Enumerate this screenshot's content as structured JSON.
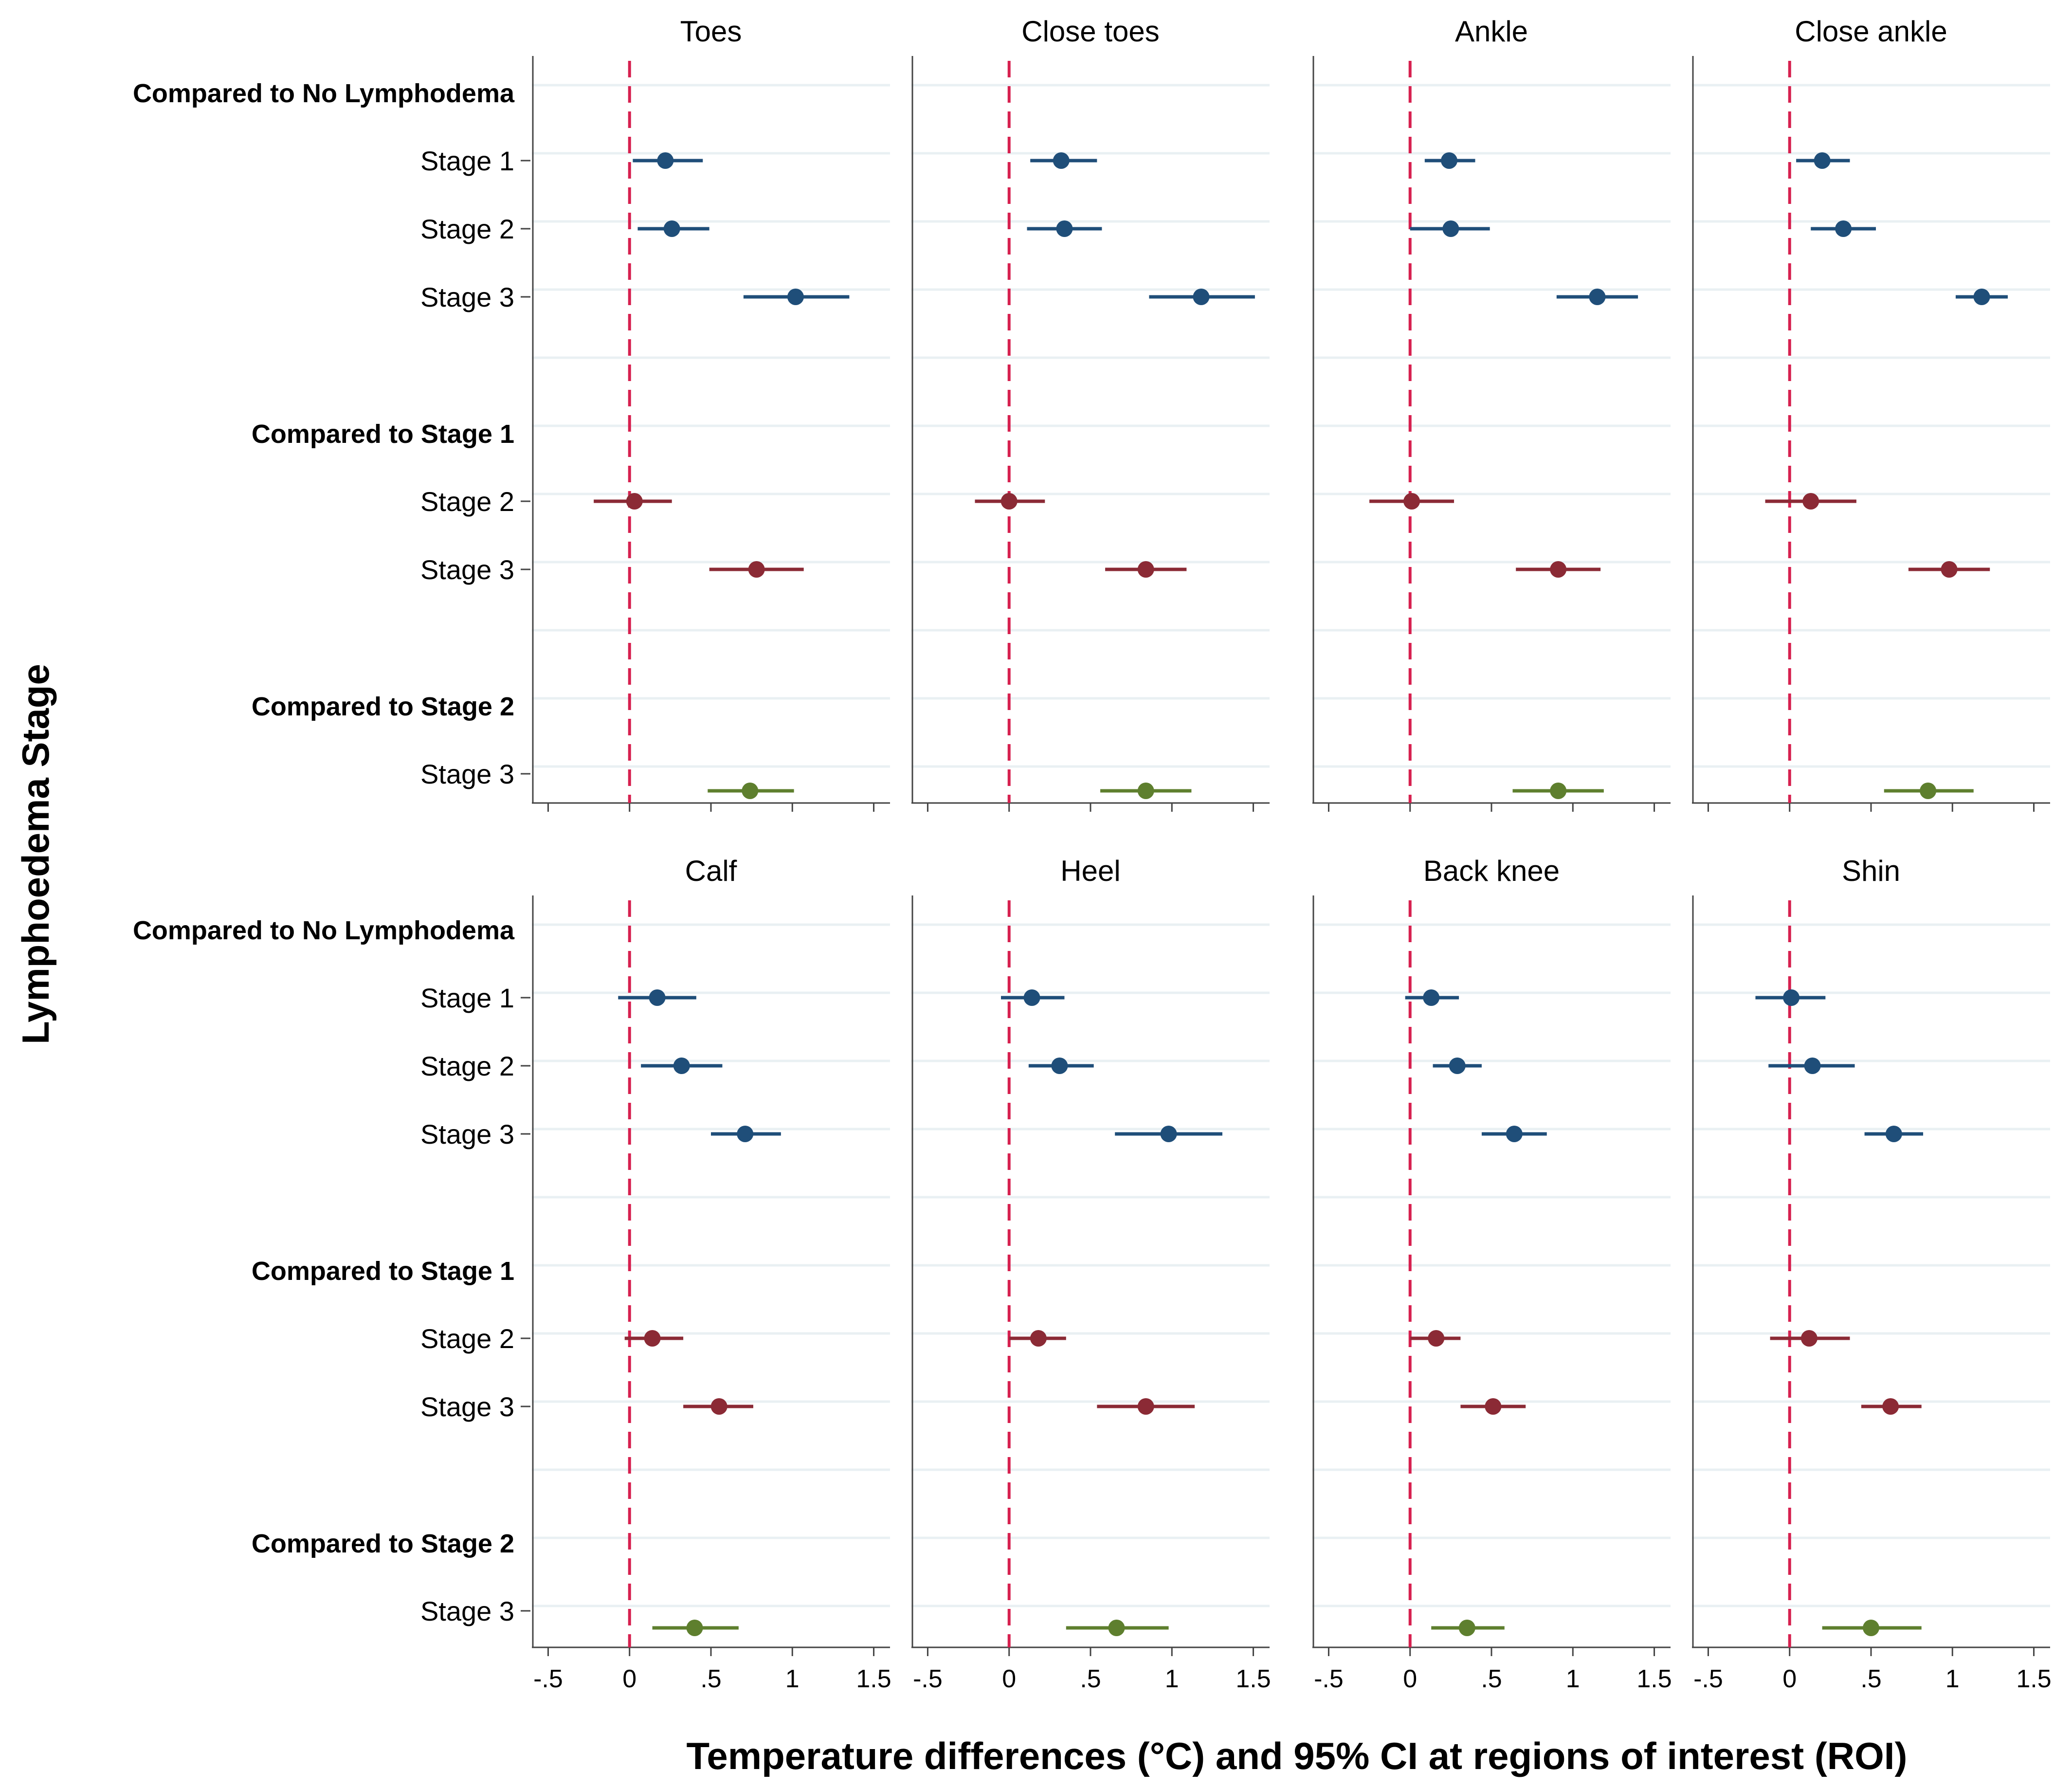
{
  "chart_data": {
    "type": "forest",
    "ylabel": "Lymphoedema Stage",
    "xlabel": "Temperature differences (°C) and 95% CI at regions of interest (ROI)",
    "xlim": [
      -0.6,
      1.6
    ],
    "x_ticks": [
      -0.5,
      0,
      0.5,
      1,
      1.5
    ],
    "x_tick_labels": [
      "-.5",
      "0",
      ".5",
      "1",
      "1.5"
    ],
    "reference_line": 0,
    "colors": {
      "vs_no_lymphodema": "#1f4e79",
      "vs_stage1": "#8b2a35",
      "vs_stage2": "#5e7f2e",
      "reference": "#d6204f",
      "gridline": "#e9f0f3",
      "axis": "#444444"
    },
    "row_labels": [
      {
        "label": "Compared to No Lymphodema",
        "kind": "header"
      },
      {
        "label": "Stage 1",
        "kind": "row"
      },
      {
        "label": "Stage 2",
        "kind": "row"
      },
      {
        "label": "Stage 3",
        "kind": "row"
      },
      {
        "label": "Compared to Stage 1",
        "kind": "header"
      },
      {
        "label": "Stage 2",
        "kind": "row"
      },
      {
        "label": "Stage 3",
        "kind": "row"
      },
      {
        "label": "Compared to Stage 2",
        "kind": "header"
      },
      {
        "label": "Stage 3",
        "kind": "row"
      }
    ],
    "panels": [
      {
        "title": "Toes",
        "estimates": [
          {
            "group": "vs_no_lymphodema",
            "stage": "Stage 1",
            "est": 0.22,
            "lo": 0.02,
            "hi": 0.45
          },
          {
            "group": "vs_no_lymphodema",
            "stage": "Stage 2",
            "est": 0.26,
            "lo": 0.05,
            "hi": 0.49
          },
          {
            "group": "vs_no_lymphodema",
            "stage": "Stage 3",
            "est": 1.02,
            "lo": 0.7,
            "hi": 1.35
          },
          {
            "group": "vs_stage1",
            "stage": "Stage 2",
            "est": 0.03,
            "lo": -0.22,
            "hi": 0.26
          },
          {
            "group": "vs_stage1",
            "stage": "Stage 3",
            "est": 0.78,
            "lo": 0.49,
            "hi": 1.07
          },
          {
            "group": "vs_stage2",
            "stage": "Stage 3",
            "est": 0.74,
            "lo": 0.48,
            "hi": 1.01
          }
        ]
      },
      {
        "title": "Close toes",
        "estimates": [
          {
            "group": "vs_no_lymphodema",
            "stage": "Stage 1",
            "est": 0.32,
            "lo": 0.13,
            "hi": 0.54
          },
          {
            "group": "vs_no_lymphodema",
            "stage": "Stage 2",
            "est": 0.34,
            "lo": 0.11,
            "hi": 0.57
          },
          {
            "group": "vs_no_lymphodema",
            "stage": "Stage 3",
            "est": 1.18,
            "lo": 0.86,
            "hi": 1.51
          },
          {
            "group": "vs_stage1",
            "stage": "Stage 2",
            "est": 0.0,
            "lo": -0.21,
            "hi": 0.22
          },
          {
            "group": "vs_stage1",
            "stage": "Stage 3",
            "est": 0.84,
            "lo": 0.59,
            "hi": 1.09
          },
          {
            "group": "vs_stage2",
            "stage": "Stage 3",
            "est": 0.84,
            "lo": 0.56,
            "hi": 1.12
          }
        ]
      },
      {
        "title": "Ankle",
        "estimates": [
          {
            "group": "vs_no_lymphodema",
            "stage": "Stage 1",
            "est": 0.24,
            "lo": 0.09,
            "hi": 0.4
          },
          {
            "group": "vs_no_lymphodema",
            "stage": "Stage 2",
            "est": 0.25,
            "lo": 0.0,
            "hi": 0.49
          },
          {
            "group": "vs_no_lymphodema",
            "stage": "Stage 3",
            "est": 1.15,
            "lo": 0.9,
            "hi": 1.4
          },
          {
            "group": "vs_stage1",
            "stage": "Stage 2",
            "est": 0.01,
            "lo": -0.25,
            "hi": 0.27
          },
          {
            "group": "vs_stage1",
            "stage": "Stage 3",
            "est": 0.91,
            "lo": 0.65,
            "hi": 1.17
          },
          {
            "group": "vs_stage2",
            "stage": "Stage 3",
            "est": 0.91,
            "lo": 0.63,
            "hi": 1.19
          }
        ]
      },
      {
        "title": "Close ankle",
        "estimates": [
          {
            "group": "vs_no_lymphodema",
            "stage": "Stage 1",
            "est": 0.2,
            "lo": 0.04,
            "hi": 0.37
          },
          {
            "group": "vs_no_lymphodema",
            "stage": "Stage 2",
            "est": 0.33,
            "lo": 0.13,
            "hi": 0.53
          },
          {
            "group": "vs_no_lymphodema",
            "stage": "Stage 3",
            "est": 1.18,
            "lo": 1.02,
            "hi": 1.34
          },
          {
            "group": "vs_stage1",
            "stage": "Stage 2",
            "est": 0.13,
            "lo": -0.15,
            "hi": 0.41
          },
          {
            "group": "vs_stage1",
            "stage": "Stage 3",
            "est": 0.98,
            "lo": 0.73,
            "hi": 1.23
          },
          {
            "group": "vs_stage2",
            "stage": "Stage 3",
            "est": 0.85,
            "lo": 0.58,
            "hi": 1.13
          }
        ]
      },
      {
        "title": "Calf",
        "estimates": [
          {
            "group": "vs_no_lymphodema",
            "stage": "Stage 1",
            "est": 0.17,
            "lo": -0.07,
            "hi": 0.41
          },
          {
            "group": "vs_no_lymphodema",
            "stage": "Stage 2",
            "est": 0.32,
            "lo": 0.07,
            "hi": 0.57
          },
          {
            "group": "vs_no_lymphodema",
            "stage": "Stage 3",
            "est": 0.71,
            "lo": 0.5,
            "hi": 0.93
          },
          {
            "group": "vs_stage1",
            "stage": "Stage 2",
            "est": 0.14,
            "lo": -0.03,
            "hi": 0.33
          },
          {
            "group": "vs_stage1",
            "stage": "Stage 3",
            "est": 0.55,
            "lo": 0.33,
            "hi": 0.76
          },
          {
            "group": "vs_stage2",
            "stage": "Stage 3",
            "est": 0.4,
            "lo": 0.14,
            "hi": 0.67
          }
        ]
      },
      {
        "title": "Heel",
        "estimates": [
          {
            "group": "vs_no_lymphodema",
            "stage": "Stage 1",
            "est": 0.14,
            "lo": -0.05,
            "hi": 0.34
          },
          {
            "group": "vs_no_lymphodema",
            "stage": "Stage 2",
            "est": 0.31,
            "lo": 0.12,
            "hi": 0.52
          },
          {
            "group": "vs_no_lymphodema",
            "stage": "Stage 3",
            "est": 0.98,
            "lo": 0.65,
            "hi": 1.31
          },
          {
            "group": "vs_stage1",
            "stage": "Stage 2",
            "est": 0.18,
            "lo": 0.0,
            "hi": 0.35
          },
          {
            "group": "vs_stage1",
            "stage": "Stage 3",
            "est": 0.84,
            "lo": 0.54,
            "hi": 1.14
          },
          {
            "group": "vs_stage2",
            "stage": "Stage 3",
            "est": 0.66,
            "lo": 0.35,
            "hi": 0.98
          }
        ]
      },
      {
        "title": "Back knee",
        "estimates": [
          {
            "group": "vs_no_lymphodema",
            "stage": "Stage 1",
            "est": 0.13,
            "lo": -0.03,
            "hi": 0.3
          },
          {
            "group": "vs_no_lymphodema",
            "stage": "Stage 2",
            "est": 0.29,
            "lo": 0.14,
            "hi": 0.44
          },
          {
            "group": "vs_no_lymphodema",
            "stage": "Stage 3",
            "est": 0.64,
            "lo": 0.44,
            "hi": 0.84
          },
          {
            "group": "vs_stage1",
            "stage": "Stage 2",
            "est": 0.16,
            "lo": 0.0,
            "hi": 0.31
          },
          {
            "group": "vs_stage1",
            "stage": "Stage 3",
            "est": 0.51,
            "lo": 0.31,
            "hi": 0.71
          },
          {
            "group": "vs_stage2",
            "stage": "Stage 3",
            "est": 0.35,
            "lo": 0.13,
            "hi": 0.58
          }
        ]
      },
      {
        "title": "Shin",
        "estimates": [
          {
            "group": "vs_no_lymphodema",
            "stage": "Stage 1",
            "est": 0.01,
            "lo": -0.21,
            "hi": 0.22
          },
          {
            "group": "vs_no_lymphodema",
            "stage": "Stage 2",
            "est": 0.14,
            "lo": -0.13,
            "hi": 0.4
          },
          {
            "group": "vs_no_lymphodema",
            "stage": "Stage 3",
            "est": 0.64,
            "lo": 0.46,
            "hi": 0.82
          },
          {
            "group": "vs_stage1",
            "stage": "Stage 2",
            "est": 0.12,
            "lo": -0.12,
            "hi": 0.37
          },
          {
            "group": "vs_stage1",
            "stage": "Stage 3",
            "est": 0.62,
            "lo": 0.44,
            "hi": 0.81
          },
          {
            "group": "vs_stage2",
            "stage": "Stage 3",
            "est": 0.5,
            "lo": 0.2,
            "hi": 0.81
          }
        ]
      }
    ]
  }
}
